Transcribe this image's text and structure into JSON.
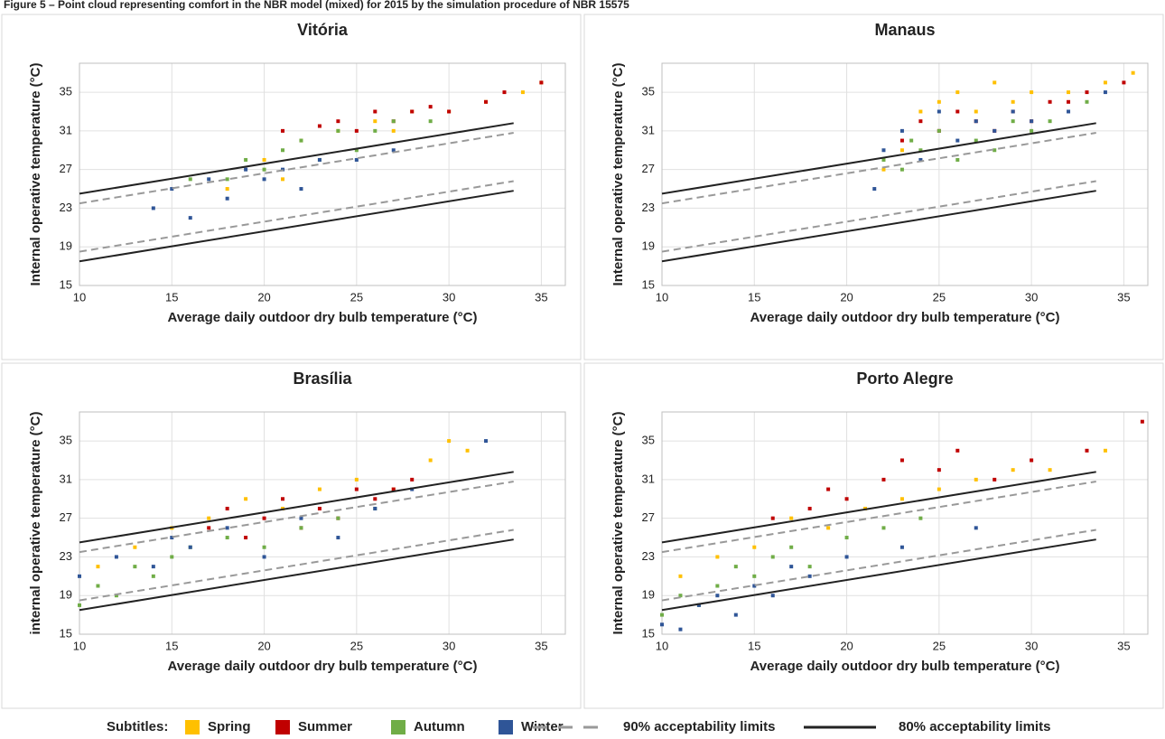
{
  "figure_title": "Figure 5 – Point cloud representing comfort in the NBR model (mixed) for 2015 by the simulation procedure of NBR 15575",
  "legend_title": "Subtitles:",
  "chart_data": [
    {
      "type": "scatter",
      "title": "Vitória",
      "x_label": "Average daily outdoor dry bulb temperature (°C)",
      "y_label": "Internal operative temperature (°C)",
      "xlim": [
        10,
        36.3
      ],
      "ylim": [
        15,
        38
      ],
      "xticks": [
        10,
        15,
        20,
        25,
        30,
        35
      ],
      "yticks": [
        15,
        19,
        23,
        27,
        31,
        35
      ],
      "grid": true,
      "series": [
        {
          "name": "Spring",
          "color": "#ffc000",
          "x": [
            18,
            20,
            22,
            24,
            26,
            28,
            30,
            32,
            34,
            35,
            21,
            27
          ],
          "values": [
            25,
            28,
            30,
            31,
            32,
            33,
            33,
            34,
            35,
            36,
            26,
            31
          ]
        },
        {
          "name": "Summer",
          "color": "#c00000",
          "x": [
            21,
            23,
            24,
            25,
            26,
            27,
            28,
            29,
            30,
            32,
            33,
            35
          ],
          "values": [
            31,
            31.5,
            32,
            31,
            33,
            32,
            33,
            33.5,
            33,
            34,
            35,
            36
          ]
        },
        {
          "name": "Autumn",
          "color": "#70ad47",
          "x": [
            16,
            18,
            19,
            20,
            21,
            22,
            23,
            24,
            25,
            26,
            27,
            29
          ],
          "values": [
            26,
            26,
            28,
            27,
            29,
            30,
            28,
            31,
            29,
            31,
            32,
            32
          ]
        },
        {
          "name": "Winter",
          "color": "#2f5597",
          "x": [
            14,
            15,
            16,
            17,
            18,
            19,
            20,
            21,
            22,
            23,
            25,
            27
          ],
          "values": [
            23,
            25,
            22,
            26,
            24,
            27,
            26,
            27,
            25,
            28,
            28,
            29
          ]
        },
        {
          "name": "90% acceptability limits",
          "type": "line",
          "color": "#999999",
          "dash": true,
          "x": [
            10,
            33.5,
            null,
            10,
            33.5
          ],
          "values": [
            23.5,
            30.8,
            null,
            18.5,
            25.8
          ]
        },
        {
          "name": "80% acceptability limits",
          "type": "line",
          "color": "#222222",
          "dash": false,
          "x": [
            10,
            33.5,
            null,
            10,
            33.5
          ],
          "values": [
            24.5,
            31.8,
            null,
            17.5,
            24.8
          ]
        }
      ]
    },
    {
      "type": "scatter",
      "title": "Manaus",
      "x_label": "Average daily outdoor dry bulb temperature (°C)",
      "y_label": "Internal operative temperature (°C)",
      "xlim": [
        10,
        36.3
      ],
      "ylim": [
        15,
        38
      ],
      "xticks": [
        10,
        15,
        20,
        25,
        30,
        35
      ],
      "yticks": [
        15,
        19,
        23,
        27,
        31,
        35
      ],
      "grid": true,
      "series": [
        {
          "name": "Spring",
          "color": "#ffc000",
          "x": [
            22,
            23,
            24,
            25,
            26,
            27,
            28,
            29,
            30,
            32,
            34,
            35.5
          ],
          "values": [
            27,
            29,
            33,
            34,
            35,
            33,
            36,
            34,
            35,
            35,
            36,
            37
          ]
        },
        {
          "name": "Summer",
          "color": "#c00000",
          "x": [
            23,
            24,
            25,
            26,
            27,
            28,
            29,
            30,
            31,
            32,
            33,
            35
          ],
          "values": [
            30,
            32,
            31,
            33,
            32,
            31,
            33,
            32,
            34,
            34,
            35,
            36
          ]
        },
        {
          "name": "Autumn",
          "color": "#70ad47",
          "x": [
            22,
            23,
            23.5,
            24,
            25,
            26,
            27,
            28,
            29,
            30,
            31,
            33
          ],
          "values": [
            28,
            27,
            30,
            29,
            31,
            28,
            30,
            29,
            32,
            31,
            32,
            34
          ]
        },
        {
          "name": "Winter",
          "color": "#2f5597",
          "x": [
            21.5,
            22,
            23,
            24,
            25,
            26,
            27,
            28,
            29,
            30,
            32,
            34
          ],
          "values": [
            25,
            29,
            31,
            28,
            33,
            30,
            32,
            31,
            33,
            32,
            33,
            35
          ]
        },
        {
          "name": "90% acceptability limits",
          "type": "line",
          "color": "#999999",
          "dash": true,
          "x": [
            10,
            33.5,
            null,
            10,
            33.5
          ],
          "values": [
            23.5,
            30.8,
            null,
            18.5,
            25.8
          ]
        },
        {
          "name": "80% acceptability limits",
          "type": "line",
          "color": "#222222",
          "dash": false,
          "x": [
            10,
            33.5,
            null,
            10,
            33.5
          ],
          "values": [
            24.5,
            31.8,
            null,
            17.5,
            24.8
          ]
        }
      ]
    },
    {
      "type": "scatter",
      "title": "Brasília",
      "x_label": "Average daily outdoor dry bulb temperature (°C)",
      "y_label": "internal operative temperature (°C)",
      "xlim": [
        10,
        36.3
      ],
      "ylim": [
        15,
        38
      ],
      "xticks": [
        10,
        15,
        20,
        25,
        30,
        35
      ],
      "yticks": [
        15,
        19,
        23,
        27,
        31,
        35
      ],
      "grid": true,
      "series": [
        {
          "name": "Spring",
          "color": "#ffc000",
          "x": [
            11,
            13,
            15,
            17,
            19,
            21,
            23,
            25,
            27,
            29,
            30,
            31
          ],
          "values": [
            22,
            24,
            26,
            27,
            29,
            28,
            30,
            31,
            30,
            33,
            35,
            34
          ]
        },
        {
          "name": "Summer",
          "color": "#c00000",
          "x": [
            17,
            18,
            19,
            20,
            21,
            22,
            23,
            24,
            25,
            26,
            27,
            28
          ],
          "values": [
            26,
            28,
            25,
            27,
            29,
            26,
            28,
            27,
            30,
            29,
            30,
            31
          ]
        },
        {
          "name": "Autumn",
          "color": "#70ad47",
          "x": [
            10,
            11,
            12,
            13,
            14,
            15,
            16,
            18,
            20,
            22,
            24,
            26
          ],
          "values": [
            18,
            20,
            19,
            22,
            21,
            23,
            24,
            25,
            24,
            26,
            27,
            28
          ]
        },
        {
          "name": "Winter",
          "color": "#2f5597",
          "x": [
            10,
            12,
            14,
            15,
            16,
            18,
            20,
            22,
            24,
            26,
            28,
            32
          ],
          "values": [
            21,
            23,
            22,
            25,
            24,
            26,
            23,
            27,
            25,
            28,
            30,
            35
          ]
        },
        {
          "name": "90% acceptability limits",
          "type": "line",
          "color": "#999999",
          "dash": true,
          "x": [
            10,
            33.5,
            null,
            10,
            33.5
          ],
          "values": [
            23.5,
            30.8,
            null,
            18.5,
            25.8
          ]
        },
        {
          "name": "80% acceptability limits",
          "type": "line",
          "color": "#222222",
          "dash": false,
          "x": [
            10,
            33.5,
            null,
            10,
            33.5
          ],
          "values": [
            24.5,
            31.8,
            null,
            17.5,
            24.8
          ]
        }
      ]
    },
    {
      "type": "scatter",
      "title": "Porto Alegre",
      "x_label": "Average daily outdoor dry bulb temperature (°C)",
      "y_label": "Internal operative temperature (°C)",
      "xlim": [
        10,
        36.3
      ],
      "ylim": [
        15,
        38
      ],
      "xticks": [
        10,
        15,
        20,
        25,
        30,
        35
      ],
      "yticks": [
        15,
        19,
        23,
        27,
        31,
        35
      ],
      "grid": true,
      "series": [
        {
          "name": "Spring",
          "color": "#ffc000",
          "x": [
            11,
            13,
            15,
            17,
            19,
            21,
            23,
            25,
            27,
            29,
            31,
            34
          ],
          "values": [
            21,
            23,
            24,
            27,
            26,
            28,
            29,
            30,
            31,
            32,
            32,
            34
          ]
        },
        {
          "name": "Summer",
          "color": "#c00000",
          "x": [
            16,
            18,
            19,
            20,
            22,
            23,
            25,
            26,
            28,
            30,
            33,
            36
          ],
          "values": [
            27,
            28,
            30,
            29,
            31,
            33,
            32,
            34,
            31,
            33,
            34,
            37
          ]
        },
        {
          "name": "Autumn",
          "color": "#70ad47",
          "x": [
            10,
            11,
            12,
            13,
            14,
            15,
            16,
            17,
            18,
            20,
            22,
            24
          ],
          "values": [
            17,
            19,
            18,
            20,
            22,
            21,
            23,
            24,
            22,
            25,
            26,
            27
          ]
        },
        {
          "name": "Winter",
          "color": "#2f5597",
          "x": [
            10,
            11,
            12,
            13,
            14,
            15,
            16,
            17,
            18,
            20,
            23,
            27
          ],
          "values": [
            16,
            15.5,
            18,
            19,
            17,
            20,
            19,
            22,
            21,
            23,
            24,
            26
          ]
        },
        {
          "name": "90% acceptability limits",
          "type": "line",
          "color": "#999999",
          "dash": true,
          "x": [
            10,
            33.5,
            null,
            10,
            33.5
          ],
          "values": [
            23.5,
            30.8,
            null,
            18.5,
            25.8
          ]
        },
        {
          "name": "80% acceptability limits",
          "type": "line",
          "color": "#222222",
          "dash": false,
          "x": [
            10,
            33.5,
            null,
            10,
            33.5
          ],
          "values": [
            24.5,
            31.8,
            null,
            17.5,
            24.8
          ]
        }
      ]
    }
  ]
}
